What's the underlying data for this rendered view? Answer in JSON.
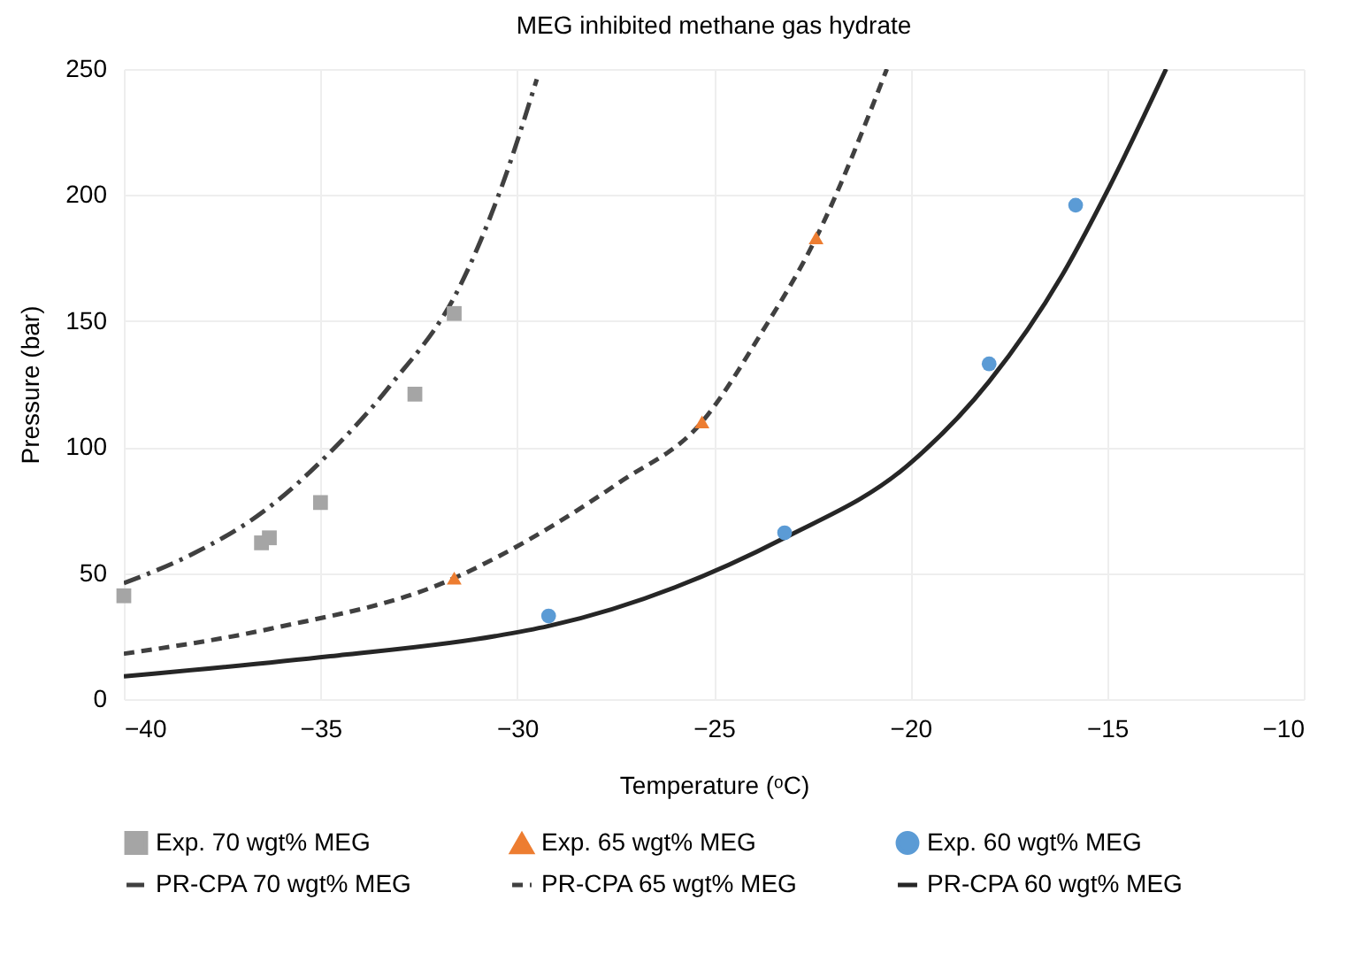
{
  "chart_data": {
    "type": "scatter",
    "title": "MEG inhibited methane gas hydrate",
    "xlabel": "Temperature (ᵒC)",
    "ylabel": "Pressure (bar)",
    "xlim": [
      -40,
      -10
    ],
    "xticks": [
      -40,
      -35,
      -30,
      -25,
      -20,
      -15,
      -10
    ],
    "ylim": [
      0,
      250
    ],
    "yticks": [
      0,
      50,
      100,
      150,
      200,
      250
    ],
    "grid": true,
    "legend": "bottom",
    "series": [
      {
        "name": "Exp. 70 wgt% MEG",
        "type": "scatter",
        "marker": "square",
        "color": "#a5a5a5",
        "x": [
          -40,
          -36.5,
          -36.3,
          -35,
          -32.6,
          -31.6
        ],
        "values": [
          41,
          62,
          64,
          78,
          121,
          153
        ]
      },
      {
        "name": "Exp. 65 wgt% MEG",
        "type": "scatter",
        "marker": "triangle",
        "color": "#ed7d31",
        "x": [
          -31.6,
          -25.3,
          -22.4
        ],
        "values": [
          48,
          110,
          183
        ]
      },
      {
        "name": "Exp. 60 wgt% MEG",
        "type": "scatter",
        "marker": "circle",
        "color": "#5b9bd5",
        "x": [
          -29.2,
          -23.2,
          -18,
          -15.8
        ],
        "values": [
          33,
          66,
          133,
          196
        ]
      },
      {
        "name": "PR-CPA 70 wgt% MEG",
        "type": "line",
        "line_style": "dashdot",
        "color": "#404040",
        "x": [
          -40,
          -38.2,
          -36.4,
          -34.75,
          -33.25,
          -31.45,
          -30.4,
          -29.5
        ],
        "values": [
          46,
          58,
          75,
          98,
          124,
          164,
          203,
          246
        ]
      },
      {
        "name": "PR-CPA 65 wgt% MEG",
        "type": "line",
        "line_style": "dashed",
        "color": "#404040",
        "x": [
          -40,
          -36.25,
          -31.6,
          -30.55,
          -27.4,
          -25.3,
          -23.8,
          -22.4,
          -20.6
        ],
        "values": [
          18,
          28,
          48,
          56,
          86,
          110,
          145,
          183,
          250
        ]
      },
      {
        "name": "PR-CPA 60 wgt% MEG",
        "type": "line",
        "line_style": "solid",
        "color": "#262626",
        "x": [
          -40,
          -34.75,
          -30.55,
          -29.2,
          -23.2,
          -20.05,
          -18,
          -16.15,
          -14.95,
          -13.5
        ],
        "values": [
          9,
          17,
          25,
          29,
          64,
          93,
          126,
          168,
          203,
          250
        ]
      }
    ]
  }
}
